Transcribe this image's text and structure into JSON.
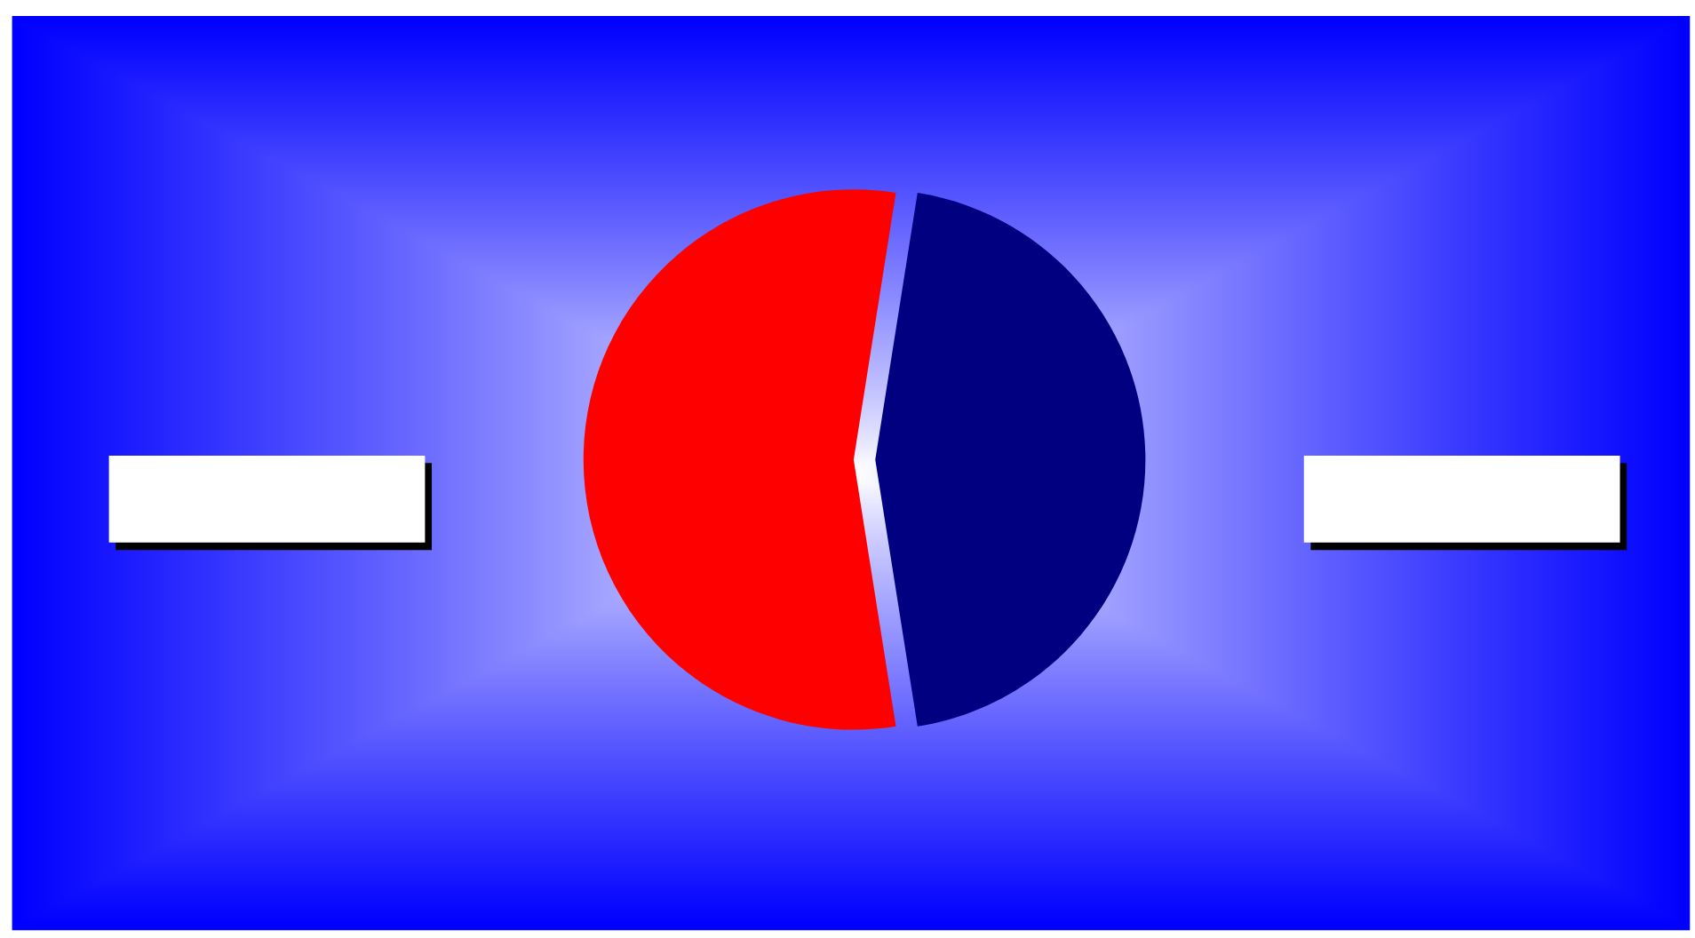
{
  "chart_data": {
    "type": "pie",
    "categories": [
      null,
      null
    ],
    "values": [
      55,
      45
    ],
    "colors": [
      "#ff0000",
      "#000080"
    ]
  }
}
